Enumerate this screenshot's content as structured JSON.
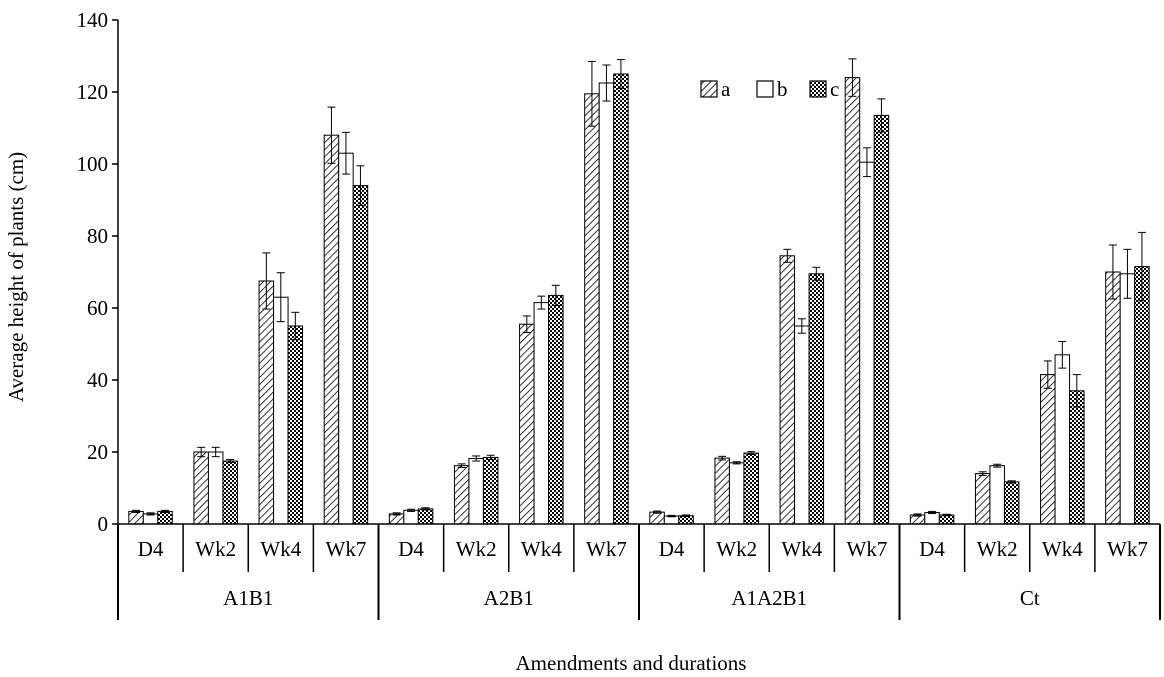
{
  "chart_data": {
    "type": "bar",
    "title": "",
    "xlabel": "Amendments and durations",
    "ylabel": "Average height of plants (cm)",
    "ylim": [
      0,
      140
    ],
    "yticks": [
      0,
      20,
      40,
      60,
      80,
      100,
      120,
      140
    ],
    "grid": false,
    "legend_position": "top-right",
    "groups": [
      "A1B1",
      "A2B1",
      "A1A2B1",
      "Ct"
    ],
    "durations": [
      "D4",
      "Wk2",
      "Wk4",
      "Wk7"
    ],
    "categories": [
      "A1B1 D4",
      "A1B1 Wk2",
      "A1B1 Wk4",
      "A1B1 Wk7",
      "A2B1 D4",
      "A2B1 Wk2",
      "A2B1 Wk4",
      "A2B1 Wk7",
      "A1A2B1 D4",
      "A1A2B1 Wk2",
      "A1A2B1 Wk4",
      "A1A2B1 Wk7",
      "Ct D4",
      "Ct Wk2",
      "Ct Wk4",
      "Ct Wk7"
    ],
    "series": [
      {
        "name": "a",
        "pattern": "diagonal-hatch",
        "values": [
          3.5,
          20,
          67.5,
          108,
          2.8,
          16.2,
          55.5,
          119.5,
          3.3,
          18.3,
          74.5,
          124,
          2.5,
          14,
          41.5,
          70
        ],
        "errors": [
          0.3,
          1.3,
          7.8,
          7.8,
          0.3,
          0.5,
          2.3,
          9,
          0.3,
          0.5,
          1.8,
          5.2,
          0.3,
          0.5,
          3.8,
          7.5
        ]
      },
      {
        "name": "b",
        "pattern": "open",
        "values": [
          2.8,
          20,
          63,
          103,
          3.8,
          18.2,
          61.5,
          122.5,
          2.2,
          17,
          55,
          100.5,
          3.2,
          16.2,
          47,
          69.5
        ],
        "errors": [
          0.3,
          1.3,
          6.8,
          5.8,
          0.3,
          0.7,
          1.8,
          5,
          0.2,
          0.3,
          2,
          4,
          0.3,
          0.4,
          3.7,
          6.8
        ]
      },
      {
        "name": "c",
        "pattern": "checkered",
        "values": [
          3.5,
          17.5,
          55,
          94,
          4.2,
          18.5,
          63.5,
          125,
          2.3,
          19.7,
          69.5,
          113.5,
          2.5,
          11.7,
          37,
          71.5
        ],
        "errors": [
          0.3,
          0.4,
          3.8,
          5.5,
          0.3,
          0.6,
          2.8,
          4,
          0.2,
          0.4,
          1.8,
          4.6,
          0.2,
          0.3,
          4.5,
          9.5
        ]
      }
    ]
  }
}
